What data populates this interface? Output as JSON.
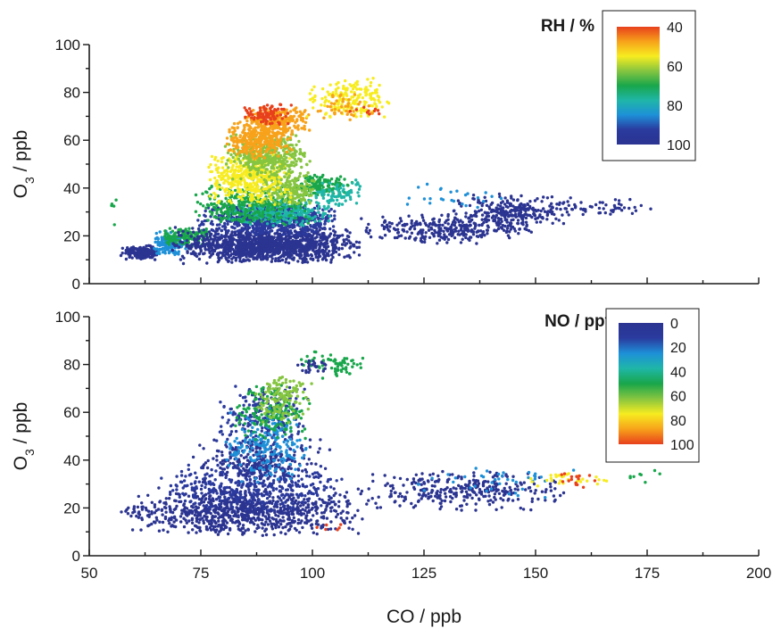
{
  "chart_data": [
    {
      "type": "scatter",
      "panel": "top",
      "xlim": [
        50,
        200
      ],
      "ylim": [
        0,
        100
      ],
      "ylabel_main": "O",
      "ylabel_sub": "3",
      "ylabel_rest": " / ppb",
      "x_tick_labels": [],
      "y_tick_labels": [
        "0",
        "20",
        "40",
        "60",
        "80",
        "100"
      ],
      "colorbar": {
        "title": "RH / %",
        "labels": [
          "40",
          "60",
          "80",
          "100"
        ],
        "gradient": [
          "#e8401c",
          "#f7a21a",
          "#f7ec20",
          "#86c540",
          "#19a64b",
          "#1fb6a8",
          "#1e90d8",
          "#2a3a9e",
          "#2b3491"
        ]
      },
      "clusters": [
        {
          "x": [
            57,
            66
          ],
          "y": [
            10,
            16
          ],
          "n": 220,
          "color": "#2b3491"
        },
        {
          "x": [
            64,
            72
          ],
          "y": [
            12,
            22
          ],
          "n": 160,
          "color": "#1e90d8"
        },
        {
          "x": [
            66,
            78
          ],
          "y": [
            15,
            24
          ],
          "n": 140,
          "color": "#19a64b"
        },
        {
          "x": [
            68,
            112
          ],
          "y": [
            8,
            24
          ],
          "n": 1300,
          "color": "#2b3491"
        },
        {
          "x": [
            74,
            106
          ],
          "y": [
            20,
            34
          ],
          "n": 700,
          "color": "#2a3a9e"
        },
        {
          "x": [
            80,
            106
          ],
          "y": [
            24,
            36
          ],
          "n": 280,
          "color": "#1fb6a8"
        },
        {
          "x": [
            72,
            100
          ],
          "y": [
            24,
            42
          ],
          "n": 320,
          "color": "#19a64b"
        },
        {
          "x": [
            94,
            110
          ],
          "y": [
            36,
            46
          ],
          "n": 150,
          "color": "#19a64b"
        },
        {
          "x": [
            100,
            112
          ],
          "y": [
            32,
            44
          ],
          "n": 70,
          "color": "#1fb6a8"
        },
        {
          "x": [
            86,
            102
          ],
          "y": [
            32,
            46
          ],
          "n": 200,
          "color": "#86c540"
        },
        {
          "x": [
            76,
            96
          ],
          "y": [
            32,
            58
          ],
          "n": 420,
          "color": "#f7ec20"
        },
        {
          "x": [
            80,
            100
          ],
          "y": [
            42,
            64
          ],
          "n": 380,
          "color": "#86c540"
        },
        {
          "x": [
            80,
            96
          ],
          "y": [
            52,
            68
          ],
          "n": 300,
          "color": "#f7a21a"
        },
        {
          "x": [
            84,
            100
          ],
          "y": [
            62,
            74
          ],
          "n": 220,
          "color": "#f7a21a"
        },
        {
          "x": [
            84,
            96
          ],
          "y": [
            66,
            76
          ],
          "n": 90,
          "color": "#e8401c"
        },
        {
          "x": [
            98,
            118
          ],
          "y": [
            68,
            86
          ],
          "n": 190,
          "color": "#f7ec20"
        },
        {
          "x": [
            100,
            114
          ],
          "y": [
            68,
            80
          ],
          "n": 40,
          "color": "#f7a21a"
        },
        {
          "x": [
            108,
            116
          ],
          "y": [
            70,
            74
          ],
          "n": 10,
          "color": "#e8401c"
        },
        {
          "x": [
            110,
            150
          ],
          "y": [
            16,
            30
          ],
          "n": 300,
          "color": "#2b3491"
        },
        {
          "x": [
            130,
            160
          ],
          "y": [
            22,
            38
          ],
          "n": 260,
          "color": "#2b3491"
        },
        {
          "x": [
            150,
            180
          ],
          "y": [
            28,
            36
          ],
          "n": 50,
          "color": "#2b3491"
        },
        {
          "x": [
            120,
            145
          ],
          "y": [
            30,
            42
          ],
          "n": 25,
          "color": "#1e90d8"
        },
        {
          "x": [
            52,
            58
          ],
          "y": [
            18,
            42
          ],
          "n": 5,
          "color": "#19a64b"
        }
      ]
    },
    {
      "type": "scatter",
      "panel": "bottom",
      "xlim": [
        50,
        200
      ],
      "ylim": [
        0,
        100
      ],
      "xlabel": "CO / ppb",
      "ylabel_main": "O",
      "ylabel_sub": "3",
      "ylabel_rest": " / ppb",
      "x_tick_labels": [
        "50",
        "75",
        "100",
        "125",
        "150",
        "175",
        "200"
      ],
      "y_tick_labels": [
        "0",
        "20",
        "40",
        "60",
        "80",
        "100"
      ],
      "colorbar": {
        "title": "NO / ppt",
        "labels": [
          "0",
          "20",
          "40",
          "60",
          "80",
          "100"
        ],
        "gradient": [
          "#2b3491",
          "#2a3a9e",
          "#1e90d8",
          "#1fb6a8",
          "#19a64b",
          "#86c540",
          "#f7ec20",
          "#f7a21a",
          "#e8401c"
        ]
      },
      "clusters": [
        {
          "x": [
            57,
            112
          ],
          "y": [
            8,
            30
          ],
          "n": 900,
          "color": "#2b3491"
        },
        {
          "x": [
            65,
            108
          ],
          "y": [
            18,
            40
          ],
          "n": 350,
          "color": "#2a3a9e"
        },
        {
          "x": [
            72,
            104
          ],
          "y": [
            30,
            50
          ],
          "n": 260,
          "color": "#2b3491"
        },
        {
          "x": [
            78,
            100
          ],
          "y": [
            42,
            72
          ],
          "n": 230,
          "color": "#2a3a9e"
        },
        {
          "x": [
            80,
            100
          ],
          "y": [
            30,
            62
          ],
          "n": 200,
          "color": "#1e90d8"
        },
        {
          "x": [
            82,
            100
          ],
          "y": [
            48,
            72
          ],
          "n": 160,
          "color": "#19a64b"
        },
        {
          "x": [
            86,
            100
          ],
          "y": [
            54,
            76
          ],
          "n": 130,
          "color": "#86c540"
        },
        {
          "x": [
            96,
            112
          ],
          "y": [
            74,
            86
          ],
          "n": 70,
          "color": "#19a64b"
        },
        {
          "x": [
            96,
            104
          ],
          "y": [
            76,
            82
          ],
          "n": 25,
          "color": "#2b3491"
        },
        {
          "x": [
            110,
            158
          ],
          "y": [
            18,
            36
          ],
          "n": 320,
          "color": "#2b3491"
        },
        {
          "x": [
            120,
            160
          ],
          "y": [
            24,
            38
          ],
          "n": 40,
          "color": "#1e90d8"
        },
        {
          "x": [
            145,
            168
          ],
          "y": [
            28,
            36
          ],
          "n": 30,
          "color": "#f7ec20"
        },
        {
          "x": [
            150,
            168
          ],
          "y": [
            28,
            36
          ],
          "n": 15,
          "color": "#e8401c"
        },
        {
          "x": [
            168,
            180
          ],
          "y": [
            30,
            36
          ],
          "n": 8,
          "color": "#19a64b"
        },
        {
          "x": [
            100,
            108
          ],
          "y": [
            10,
            14
          ],
          "n": 6,
          "color": "#e8401c"
        }
      ]
    }
  ]
}
